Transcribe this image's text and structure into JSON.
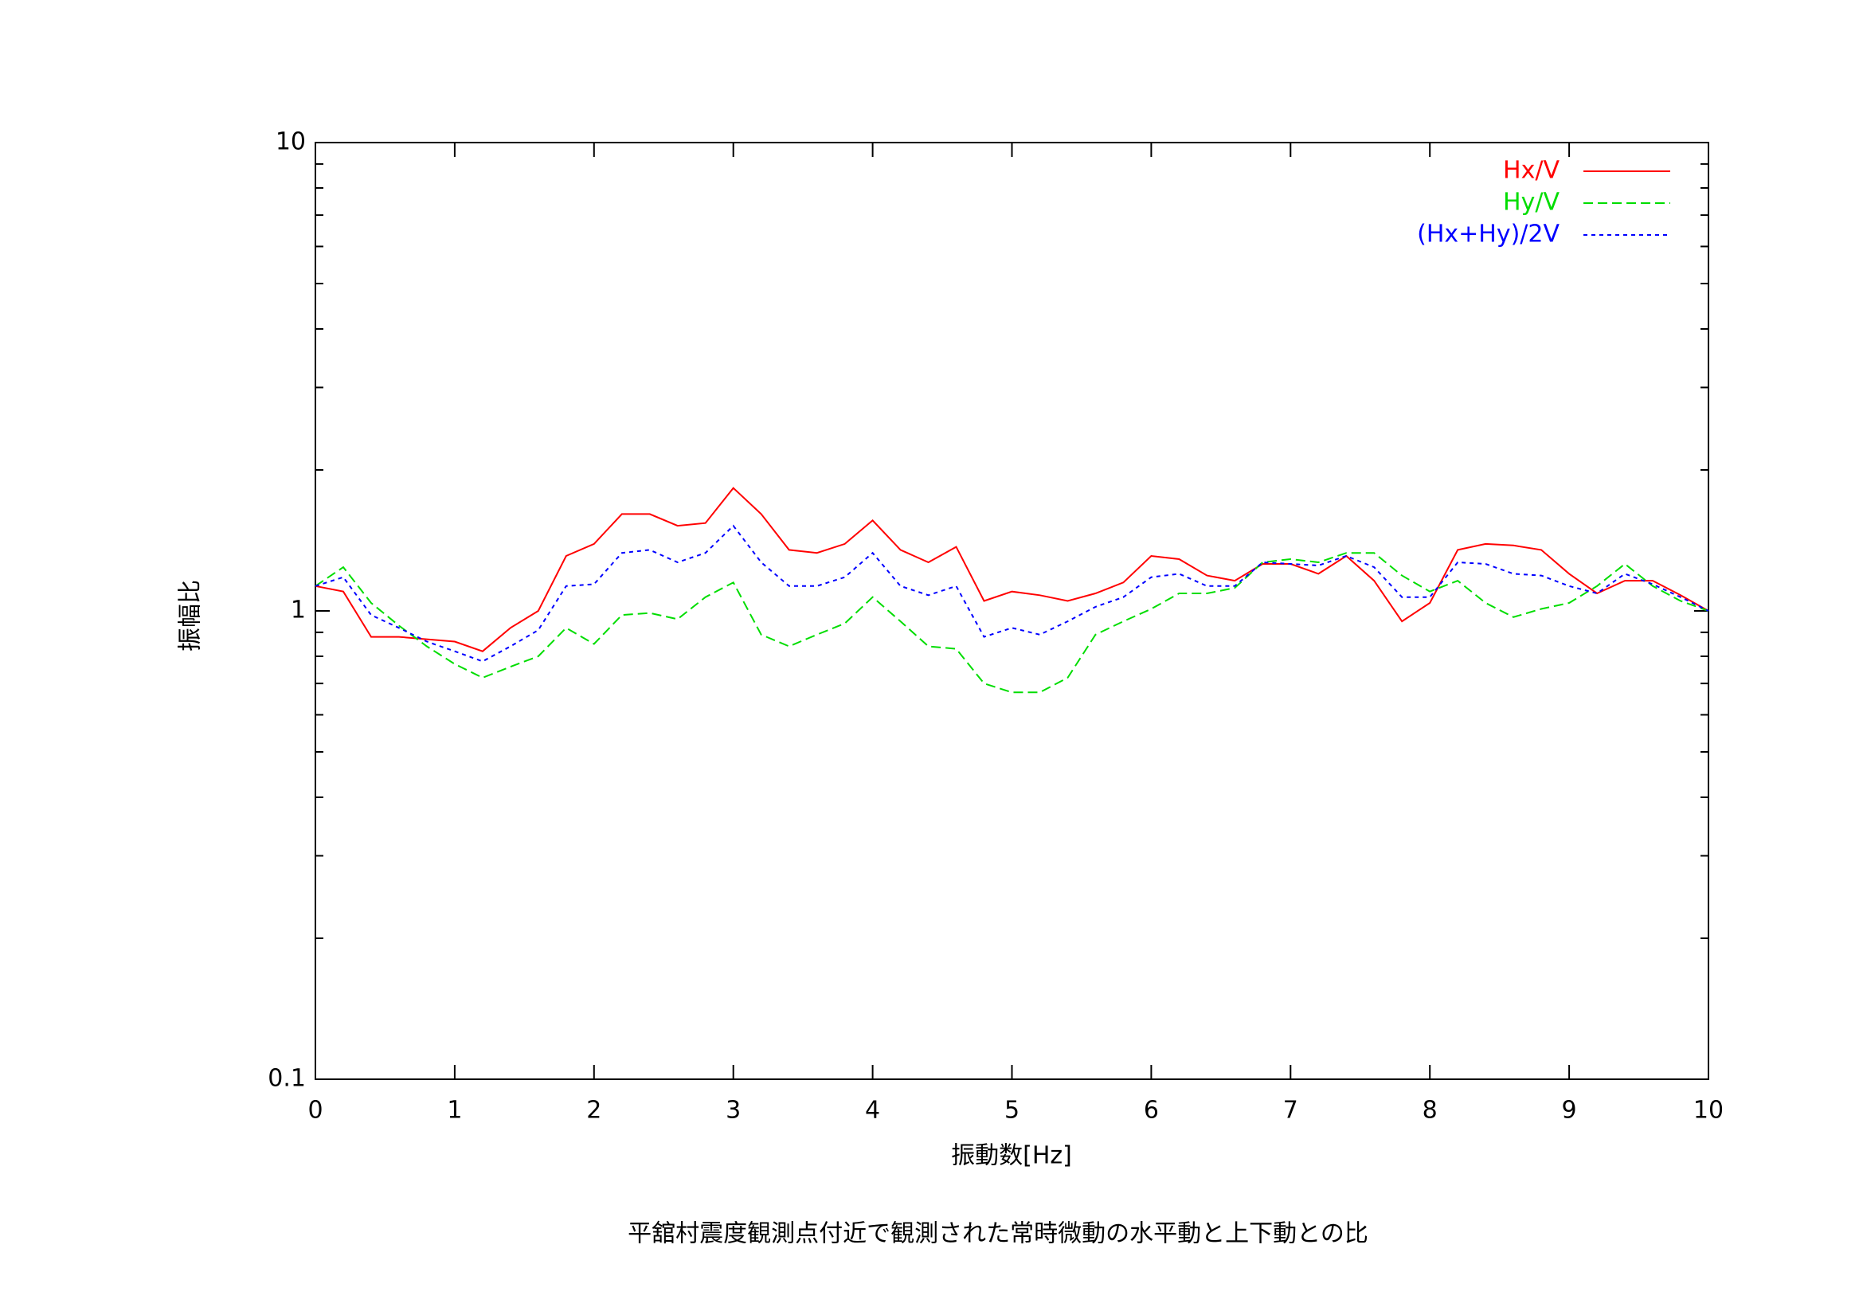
{
  "chart_data": {
    "type": "line",
    "ylabel": "振幅比",
    "xlabel": "振動数[Hz]",
    "caption": "平舘村震度観測点付近で観測された常時微動の水平動と上下動との比",
    "x": [
      0,
      0.2,
      0.4,
      0.6,
      0.8,
      1,
      1.2,
      1.4,
      1.6,
      1.8,
      2,
      2.2,
      2.4,
      2.6,
      2.8,
      3,
      3.2,
      3.4,
      3.6,
      3.8,
      4,
      4.2,
      4.4,
      4.6,
      4.8,
      5,
      5.2,
      5.4,
      5.6,
      5.8,
      6,
      6.2,
      6.4,
      6.6,
      6.8,
      7,
      7.2,
      7.4,
      7.6,
      7.8,
      8,
      8.2,
      8.4,
      8.6,
      8.8,
      9,
      9.2,
      9.4,
      9.6,
      9.8,
      10
    ],
    "series": [
      {
        "name": "Hx/V",
        "color": "#ff0000",
        "dash": "none",
        "values": [
          1.13,
          1.1,
          0.88,
          0.88,
          0.87,
          0.86,
          0.82,
          0.92,
          1.0,
          1.31,
          1.39,
          1.61,
          1.61,
          1.52,
          1.54,
          1.83,
          1.61,
          1.35,
          1.33,
          1.39,
          1.56,
          1.35,
          1.27,
          1.37,
          1.05,
          1.1,
          1.08,
          1.05,
          1.09,
          1.15,
          1.31,
          1.29,
          1.19,
          1.16,
          1.26,
          1.26,
          1.2,
          1.31,
          1.16,
          0.95,
          1.04,
          1.35,
          1.39,
          1.38,
          1.35,
          1.2,
          1.09,
          1.16,
          1.16,
          1.08,
          1.0
        ]
      },
      {
        "name": "Hy/V",
        "color": "#00dd00",
        "dash": "12,6",
        "values": [
          1.13,
          1.24,
          1.04,
          0.93,
          0.84,
          0.77,
          0.72,
          0.76,
          0.8,
          0.92,
          0.85,
          0.98,
          0.99,
          0.96,
          1.07,
          1.15,
          0.89,
          0.84,
          0.89,
          0.94,
          1.07,
          0.95,
          0.84,
          0.83,
          0.7,
          0.67,
          0.67,
          0.72,
          0.89,
          0.95,
          1.01,
          1.09,
          1.09,
          1.12,
          1.27,
          1.29,
          1.27,
          1.33,
          1.33,
          1.19,
          1.1,
          1.16,
          1.04,
          0.97,
          1.01,
          1.04,
          1.13,
          1.26,
          1.13,
          1.05,
          1.0
        ]
      },
      {
        "name": "(Hx+Hy)/2V",
        "color": "#0000ff",
        "dash": "5,5",
        "values": [
          1.13,
          1.18,
          0.98,
          0.92,
          0.86,
          0.82,
          0.78,
          0.84,
          0.91,
          1.13,
          1.14,
          1.33,
          1.35,
          1.27,
          1.33,
          1.52,
          1.27,
          1.13,
          1.13,
          1.18,
          1.33,
          1.13,
          1.08,
          1.13,
          0.88,
          0.92,
          0.89,
          0.95,
          1.02,
          1.07,
          1.18,
          1.2,
          1.13,
          1.13,
          1.27,
          1.26,
          1.25,
          1.31,
          1.24,
          1.07,
          1.07,
          1.27,
          1.26,
          1.2,
          1.19,
          1.13,
          1.09,
          1.2,
          1.14,
          1.07,
          1.0
        ]
      }
    ],
    "xlim": [
      0,
      10
    ],
    "xticks": [
      0,
      1,
      2,
      3,
      4,
      5,
      6,
      7,
      8,
      9,
      10
    ],
    "ylim": [
      0.1,
      10
    ],
    "yticks": [
      0.1,
      1,
      10
    ],
    "ylog": true,
    "yminorticks": [
      0.2,
      0.3,
      0.4,
      0.5,
      0.6,
      0.7,
      0.8,
      0.9,
      2,
      3,
      4,
      5,
      6,
      7,
      8,
      9
    ],
    "legend": "top-right"
  }
}
